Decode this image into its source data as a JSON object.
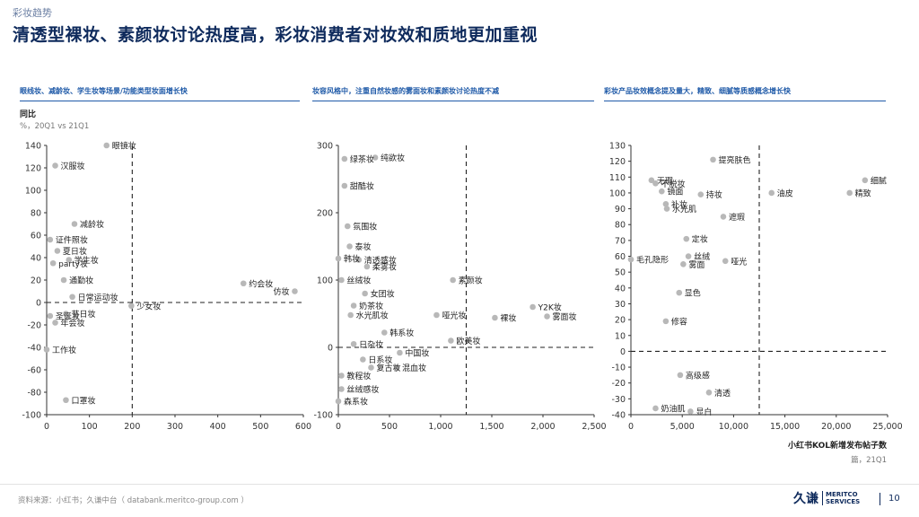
{
  "header": {
    "section_tag": "彩妆趋势",
    "title": "清透型裸妆、素颜妆讨论热度高，彩妆消费者对妆效和质地更加重视"
  },
  "panels": [
    {
      "heading": "眼线妆、减龄妆、学生妆等场景/功能类型妆面增长快"
    },
    {
      "heading": "妆容风格中，注重自然妆感的雾面妆和素颜妆讨论热度不减"
    },
    {
      "heading": "彩妆产品妆效概念提及量大，精致、细腻等质感概念增长快"
    }
  ],
  "axes": {
    "ylabel": "同比",
    "yunit": "%，20Q1 vs 21Q1",
    "xlabel": "小红书KOL新增发布帖子数",
    "xunit": "篇，21Q1"
  },
  "footer": {
    "source": "资料来源：小红书；久谦中台（ databank.meritco-group.com ）",
    "logo_cn": "久谦",
    "logo_en_1": "MERITCO",
    "logo_en_2": "SERVICES",
    "page": "10"
  },
  "colors": {
    "title": "#0e2a5c",
    "heading": "#1f5aa8",
    "point": "#b8b8b8",
    "axis": "#333333"
  },
  "chart_data": [
    {
      "type": "scatter",
      "xlim": [
        0,
        600
      ],
      "ylim": [
        -100,
        140
      ],
      "xticks": [
        0,
        100,
        200,
        300,
        400,
        500,
        600
      ],
      "yticks": [
        -100,
        -80,
        -60,
        -40,
        -20,
        0,
        20,
        40,
        60,
        80,
        100,
        120,
        140
      ],
      "ref_x": 200,
      "ref_y": 0,
      "points": [
        {
          "label": "眼镜妆",
          "x": 140,
          "y": 140
        },
        {
          "label": "汉服妆",
          "x": 20,
          "y": 122
        },
        {
          "label": "减龄妆",
          "x": 65,
          "y": 70
        },
        {
          "label": "证件照妆",
          "x": 8,
          "y": 56
        },
        {
          "label": "夏日妆",
          "x": 25,
          "y": 46
        },
        {
          "label": "学生妆",
          "x": 52,
          "y": 38
        },
        {
          "label": "party妆",
          "x": 15,
          "y": 35
        },
        {
          "label": "通勤妆",
          "x": 40,
          "y": 20
        },
        {
          "label": "日常运动妆",
          "x": 60,
          "y": 5
        },
        {
          "label": "节日妆",
          "x": 45,
          "y": -10
        },
        {
          "label": "圣诞妆",
          "x": 8,
          "y": -12
        },
        {
          "label": "年会妆",
          "x": 20,
          "y": -18
        },
        {
          "label": "工作妆",
          "x": 0,
          "y": -42
        },
        {
          "label": "口罩妆",
          "x": 45,
          "y": -87
        },
        {
          "label": "少女妆",
          "x": 198,
          "y": -3
        },
        {
          "label": "约会妆",
          "x": 460,
          "y": 17
        },
        {
          "label": "仿妆",
          "x": 580,
          "y": 10
        }
      ]
    },
    {
      "type": "scatter",
      "xlim": [
        0,
        2500
      ],
      "ylim": [
        -100,
        300
      ],
      "xticks": [
        0,
        500,
        1000,
        1500,
        2000,
        2500
      ],
      "yticks": [
        -100,
        0,
        100,
        200,
        300
      ],
      "ref_x": 1250,
      "ref_y": 0,
      "points": [
        {
          "label": "纯欲妆",
          "x": 360,
          "y": 282
        },
        {
          "label": "绿茶妆",
          "x": 60,
          "y": 280
        },
        {
          "label": "甜酷妆",
          "x": 60,
          "y": 240
        },
        {
          "label": "氛围妆",
          "x": 90,
          "y": 180
        },
        {
          "label": "泰妆",
          "x": 110,
          "y": 150
        },
        {
          "label": "清透感妆",
          "x": 200,
          "y": 130
        },
        {
          "label": "韩妆",
          "x": 0,
          "y": 132
        },
        {
          "label": "柔雾妆",
          "x": 280,
          "y": 120
        },
        {
          "label": "素颜妆",
          "x": 1120,
          "y": 100
        },
        {
          "label": "丝绒妆",
          "x": 30,
          "y": 100
        },
        {
          "label": "女团妆",
          "x": 260,
          "y": 80
        },
        {
          "label": "奶茶妆",
          "x": 150,
          "y": 62
        },
        {
          "label": "水光肌妆",
          "x": 120,
          "y": 48
        },
        {
          "label": "哑光妆",
          "x": 960,
          "y": 48
        },
        {
          "label": "裸妆",
          "x": 1530,
          "y": 44
        },
        {
          "label": "Y2K妆",
          "x": 1900,
          "y": 60
        },
        {
          "label": "雾面妆",
          "x": 2040,
          "y": 46
        },
        {
          "label": "韩系妆",
          "x": 450,
          "y": 22
        },
        {
          "label": "日杂妆",
          "x": 150,
          "y": 5
        },
        {
          "label": "欧美妆",
          "x": 1100,
          "y": 10
        },
        {
          "label": "中国妆",
          "x": 600,
          "y": -8
        },
        {
          "label": "日系妆",
          "x": 240,
          "y": -18
        },
        {
          "label": "混血妆",
          "x": 570,
          "y": -30
        },
        {
          "label": "复古妆",
          "x": 320,
          "y": -30
        },
        {
          "label": "教程妆",
          "x": 30,
          "y": -42
        },
        {
          "label": "丝绒感妆",
          "x": 30,
          "y": -62
        },
        {
          "label": "森系妆",
          "x": 0,
          "y": -80
        }
      ]
    },
    {
      "type": "scatter",
      "xlim": [
        0,
        25000
      ],
      "ylim": [
        -40,
        130
      ],
      "xticks": [
        0,
        5000,
        10000,
        15000,
        20000,
        25000
      ],
      "yticks": [
        -40,
        -30,
        -20,
        -10,
        0,
        10,
        20,
        30,
        40,
        50,
        60,
        70,
        80,
        90,
        100,
        110,
        120,
        130
      ],
      "ref_x": 12500,
      "ref_y": 0,
      "points": [
        {
          "label": "提亮肤色",
          "x": 8000,
          "y": 121
        },
        {
          "label": "无瑕",
          "x": 2000,
          "y": 108
        },
        {
          "label": "不脱妆",
          "x": 2400,
          "y": 106
        },
        {
          "label": "细腻",
          "x": 22800,
          "y": 108
        },
        {
          "label": "镜面",
          "x": 3000,
          "y": 101
        },
        {
          "label": "补妆",
          "x": 3400,
          "y": 93
        },
        {
          "label": "持妆",
          "x": 6800,
          "y": 99
        },
        {
          "label": "油皮",
          "x": 13700,
          "y": 100
        },
        {
          "label": "精致",
          "x": 21300,
          "y": 100
        },
        {
          "label": "水光肌",
          "x": 3500,
          "y": 90
        },
        {
          "label": "遮瑕",
          "x": 9000,
          "y": 85
        },
        {
          "label": "定妆",
          "x": 5400,
          "y": 71
        },
        {
          "label": "毛孔隐形",
          "x": 0,
          "y": 58
        },
        {
          "label": "丝绒",
          "x": 5600,
          "y": 60
        },
        {
          "label": "哑光",
          "x": 9200,
          "y": 57
        },
        {
          "label": "雾面",
          "x": 5100,
          "y": 55
        },
        {
          "label": "显色",
          "x": 4700,
          "y": 37
        },
        {
          "label": "修容",
          "x": 3400,
          "y": 19
        },
        {
          "label": "高级感",
          "x": 4800,
          "y": -15
        },
        {
          "label": "奶油肌",
          "x": 2400,
          "y": -36
        },
        {
          "label": "清透",
          "x": 7600,
          "y": -26
        },
        {
          "label": "显白",
          "x": 5800,
          "y": -38
        }
      ]
    }
  ]
}
